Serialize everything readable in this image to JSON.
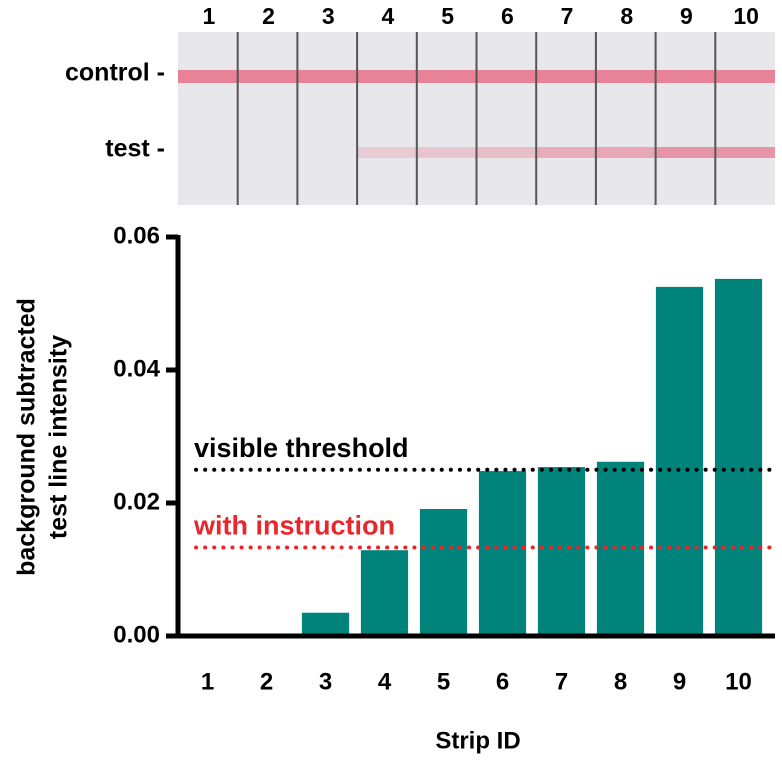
{
  "strip_image": {
    "strip_labels": [
      "1",
      "2",
      "3",
      "4",
      "5",
      "6",
      "7",
      "8",
      "9",
      "10"
    ],
    "line_labels": [
      "control -",
      "test -"
    ]
  },
  "chart_data": {
    "type": "bar",
    "ylabel": [
      "background subtracted",
      "test line intensity"
    ],
    "xlabel": "Strip ID",
    "categories": [
      "1",
      "2",
      "3",
      "4",
      "5",
      "6",
      "7",
      "8",
      "9",
      "10"
    ],
    "values": [
      0,
      0,
      0.0035,
      0.0129,
      0.0191,
      0.0248,
      0.0254,
      0.0262,
      0.0525,
      0.0537
    ],
    "color": "#00837a",
    "ylim": [
      0,
      0.06
    ],
    "yticks": [
      {
        "value": 0,
        "label": "0.00"
      },
      0.02,
      0.04,
      0.06
    ],
    "reference_lines": [
      {
        "name": "visible threshold",
        "value": 0.025,
        "color": "#000000"
      },
      {
        "name": "with instruction",
        "value": 0.0133,
        "color": "#e8262b"
      }
    ]
  }
}
